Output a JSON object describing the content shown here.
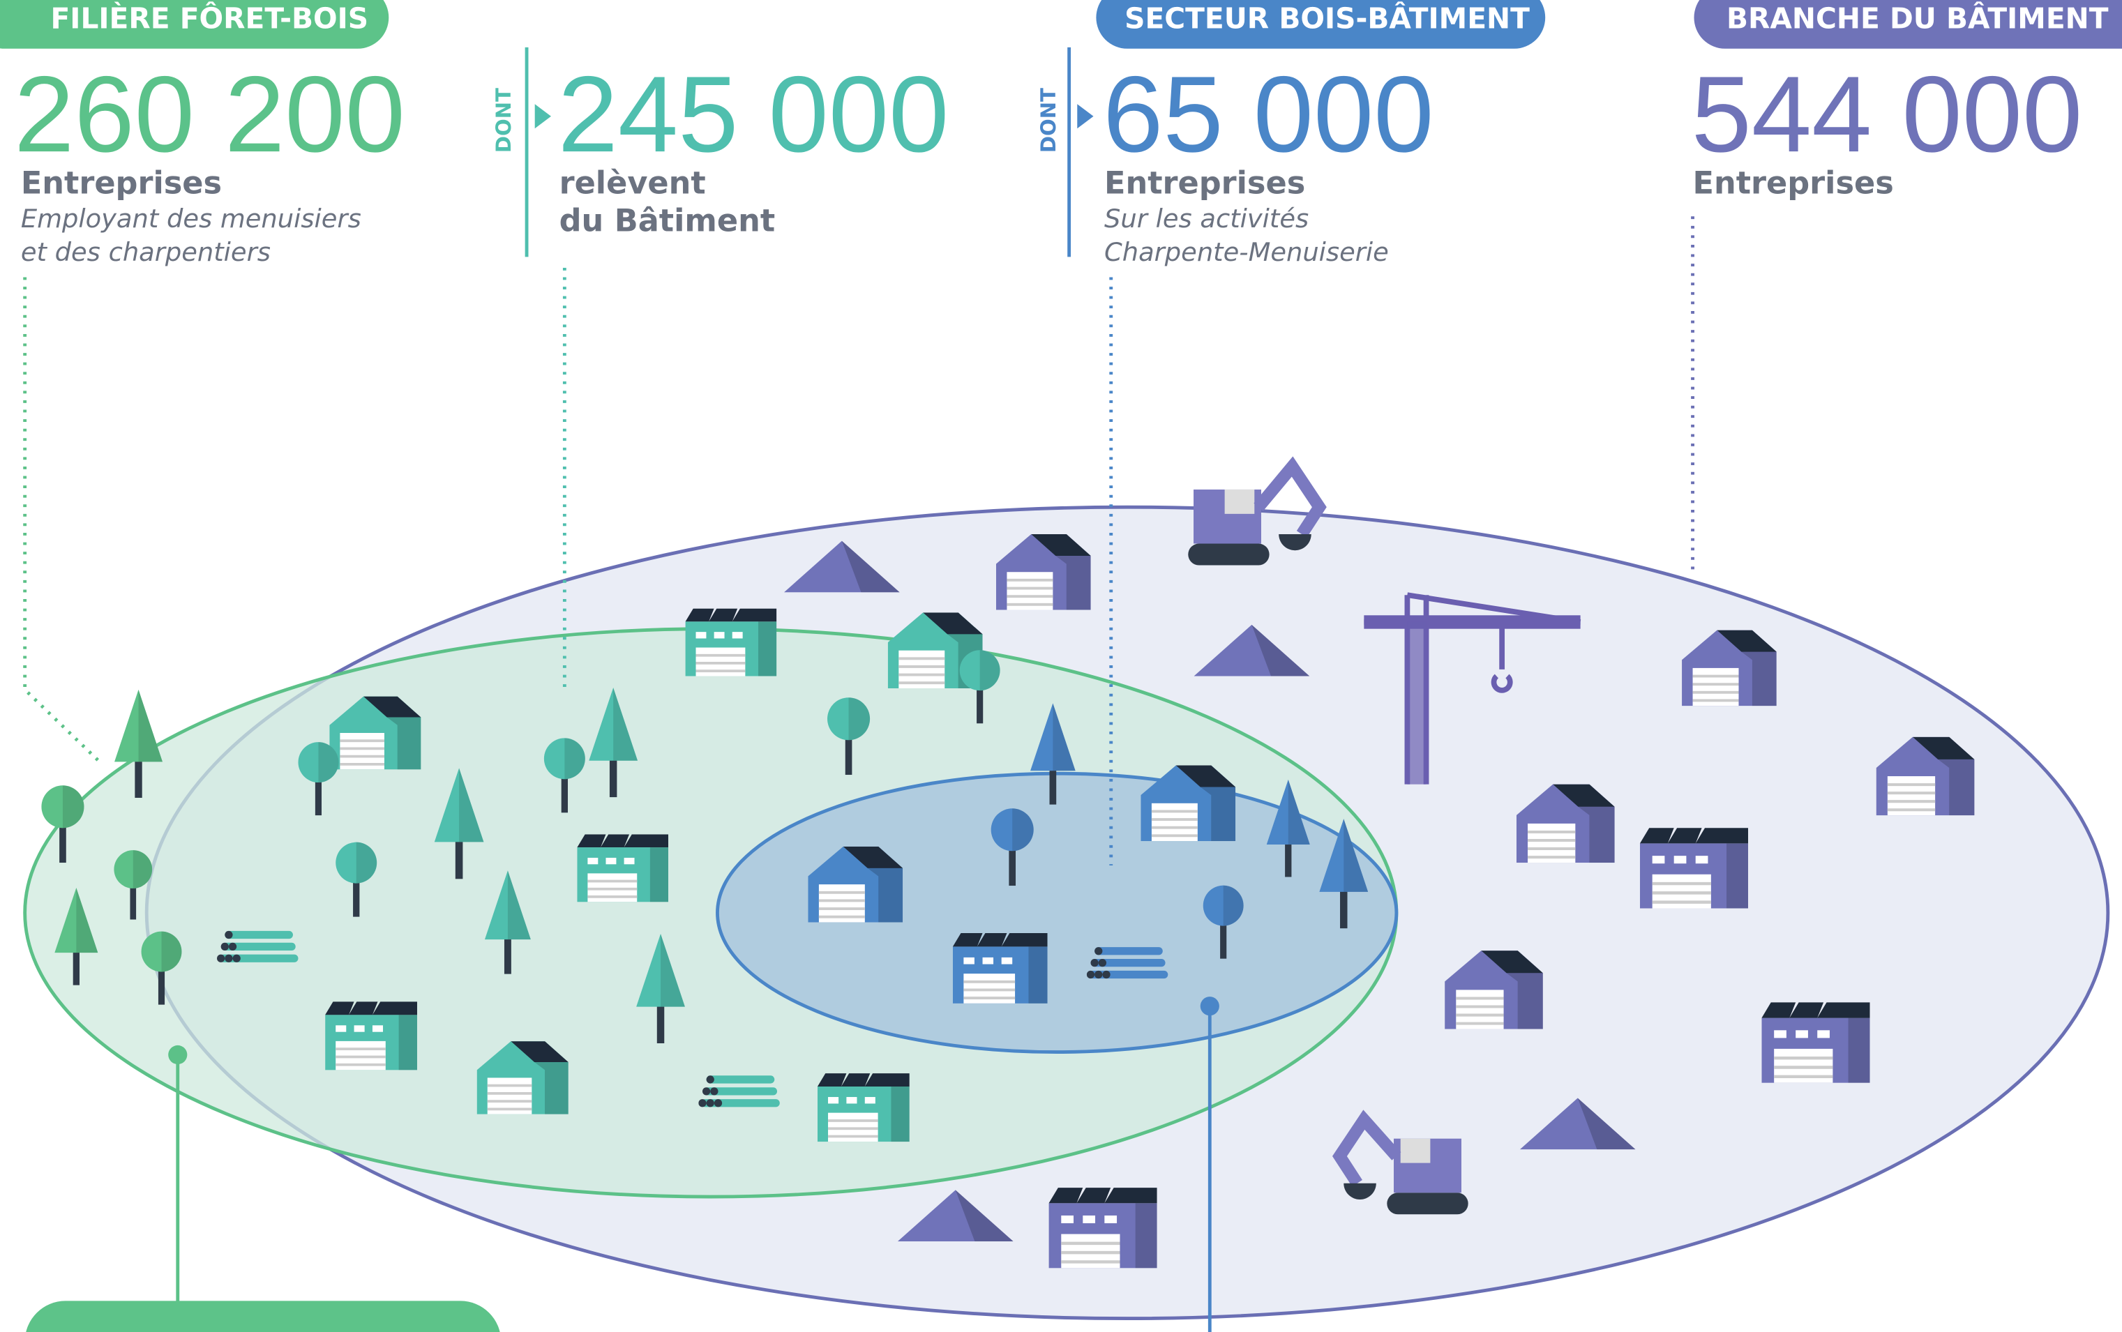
{
  "columns": [
    {
      "badge": "FILIÈRE FÔRET-BOIS",
      "number": "260 200",
      "label": "Entreprises",
      "notes": [
        "Employant des menuisiers",
        "et des charpentiers"
      ]
    },
    {
      "prefix": "DONT",
      "number": "245 000",
      "label": "relèvent",
      "notes": [
        "du Bâtiment"
      ]
    },
    {
      "badge": "SECTEUR BOIS-BÂTIMENT",
      "prefix": "DONT",
      "number": "65 000",
      "label": "Entreprises",
      "notes": [
        "Sur les activités",
        "Charpente-Menuiserie"
      ]
    },
    {
      "badge": "BRANCHE DU BÂTIMENT",
      "number": "544 000",
      "label": "Entreprises"
    }
  ]
}
